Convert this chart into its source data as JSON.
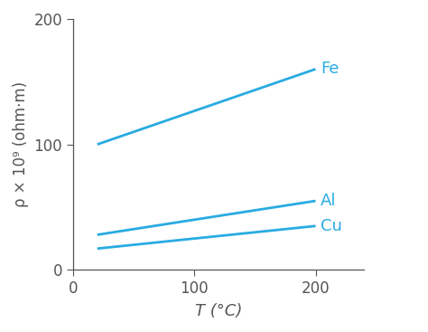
{
  "xlabel": "T (°C)",
  "ylabel": "ρ × 10⁹ (ohm·m)",
  "xlim": [
    0,
    240
  ],
  "ylim": [
    0,
    200
  ],
  "xticks": [
    0,
    100,
    200
  ],
  "yticks": [
    0,
    100,
    200
  ],
  "line_color": "#29ABE2",
  "lines": [
    {
      "label": "Fe",
      "x": [
        20,
        200
      ],
      "y": [
        100,
        160
      ]
    },
    {
      "label": "Al",
      "x": [
        20,
        200
      ],
      "y": [
        28,
        55
      ]
    },
    {
      "label": "Cu",
      "x": [
        20,
        200
      ],
      "y": [
        17,
        35
      ]
    }
  ],
  "linewidth": 2.0,
  "background_color": "#ffffff",
  "spine_color": "#555555",
  "label_fontsize": 13,
  "tick_fontsize": 12,
  "annotation_fontsize": 13
}
